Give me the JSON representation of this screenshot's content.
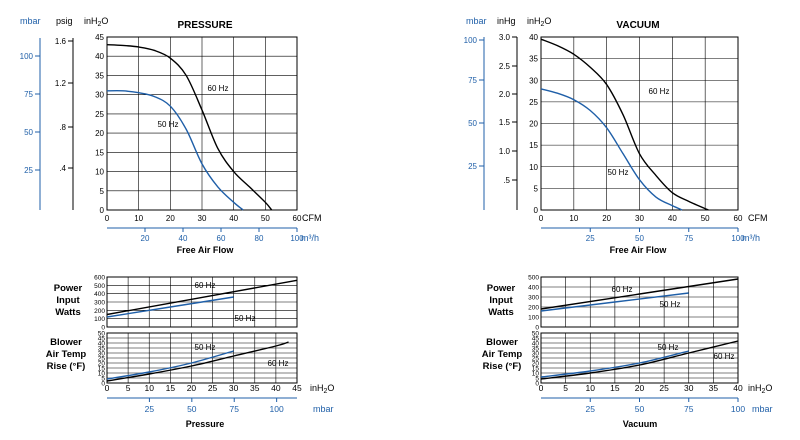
{
  "chart_data": [
    {
      "type": "line",
      "title": "PRESSURE",
      "xlabel": "Free Air Flow",
      "x_units": [
        "CFM",
        "m³/h"
      ],
      "x_ticks_cfm": [
        "0",
        "10",
        "20",
        "30",
        "40",
        "50",
        "60"
      ],
      "x_ticks_m3h": [
        "20",
        "40",
        "60",
        "80",
        "100"
      ],
      "y_units": [
        "mbar",
        "psig",
        "inH₂O"
      ],
      "y_ticks_inh2o": [
        "0",
        "5",
        "10",
        "15",
        "20",
        "25",
        "30",
        "35",
        "40",
        "45"
      ],
      "y_ticks_psig": [
        "1.6",
        "1.2",
        ".8",
        ".4"
      ],
      "y_ticks_mbar": [
        "100",
        "75",
        "50",
        "25"
      ],
      "xlim": [
        0,
        60
      ],
      "ylim": [
        0,
        45
      ],
      "grid": true,
      "series": [
        {
          "name": "60 Hz",
          "color": "#000000",
          "x": [
            0,
            5,
            10,
            15,
            20,
            25,
            30,
            35,
            40,
            45,
            50,
            52
          ],
          "y": [
            43,
            42.8,
            42.4,
            41.5,
            39.5,
            35,
            26,
            16,
            10,
            6,
            2,
            0
          ]
        },
        {
          "name": "50 Hz",
          "color": "#1f5fa8",
          "x": [
            0,
            5,
            10,
            15,
            20,
            25,
            30,
            35,
            40,
            43
          ],
          "y": [
            31,
            31,
            30.5,
            29.5,
            27,
            21,
            12,
            6,
            2,
            0
          ]
        }
      ]
    },
    {
      "type": "line",
      "title": "VACUUM",
      "xlabel": "Free Air Flow",
      "x_units": [
        "CFM",
        "m³/h"
      ],
      "x_ticks_cfm": [
        "0",
        "10",
        "20",
        "30",
        "40",
        "50",
        "60"
      ],
      "x_ticks_m3h": [
        "25",
        "50",
        "75",
        "100"
      ],
      "y_units": [
        "mbar",
        "inHg",
        "inH₂O"
      ],
      "y_ticks_inh2o": [
        "0",
        "5",
        "10",
        "15",
        "20",
        "25",
        "30",
        "35",
        "40"
      ],
      "y_ticks_inhg": [
        "3.0",
        "2.5",
        "2.0",
        "1.5",
        "1.0",
        ".5"
      ],
      "y_ticks_mbar": [
        "100",
        "75",
        "50",
        "25"
      ],
      "xlim": [
        0,
        60
      ],
      "ylim": [
        0,
        40
      ],
      "grid": true,
      "series": [
        {
          "name": "60 Hz",
          "color": "#000000",
          "x": [
            0,
            5,
            10,
            15,
            20,
            25,
            30,
            35,
            40,
            45,
            51
          ],
          "y": [
            39.5,
            38,
            36,
            33,
            29,
            22,
            13,
            8,
            4,
            2,
            0
          ]
        },
        {
          "name": "50 Hz",
          "color": "#1f5fa8",
          "x": [
            0,
            5,
            10,
            15,
            20,
            25,
            30,
            35,
            40,
            43
          ],
          "y": [
            28,
            27,
            25.5,
            23,
            19,
            13,
            7,
            3,
            1,
            0
          ]
        }
      ]
    },
    {
      "type": "line",
      "title": "",
      "ylabel": [
        "Power",
        "Input",
        "Watts"
      ],
      "y_ticks": [
        "0",
        "100",
        "200",
        "300",
        "400",
        "500",
        "600"
      ],
      "xlim": [
        0,
        45
      ],
      "ylim": [
        0,
        600
      ],
      "grid": true,
      "series": [
        {
          "name": "60 Hz",
          "color": "#000000",
          "x": [
            0,
            45
          ],
          "y": [
            150,
            560
          ]
        },
        {
          "name": "50 Hz",
          "color": "#1f5fa8",
          "x": [
            0,
            30
          ],
          "y": [
            120,
            360
          ]
        }
      ]
    },
    {
      "type": "line",
      "title": "",
      "ylabel": [
        "Blower",
        "Air Temp",
        "Rise (°F)"
      ],
      "xlabel": "Pressure",
      "x_units": [
        "inH₂O",
        "mbar"
      ],
      "x_ticks_inh2o": [
        "0",
        "5",
        "10",
        "15",
        "20",
        "25",
        "30",
        "35",
        "40",
        "45"
      ],
      "x_ticks_mbar": [
        "25",
        "50",
        "75",
        "100"
      ],
      "y_ticks": [
        "0",
        "5",
        "10",
        "15",
        "20",
        "25",
        "30",
        "35",
        "40",
        "45",
        "50"
      ],
      "xlim": [
        0,
        45
      ],
      "ylim": [
        0,
        50
      ],
      "grid": true,
      "series": [
        {
          "name": "50 Hz",
          "color": "#1f5fa8",
          "x": [
            0,
            10,
            20,
            30
          ],
          "y": [
            4,
            11,
            20,
            32
          ]
        },
        {
          "name": "60 Hz",
          "color": "#000000",
          "x": [
            0,
            10,
            20,
            30,
            40,
            43
          ],
          "y": [
            2,
            9,
            17,
            27,
            37,
            41
          ]
        }
      ]
    },
    {
      "type": "line",
      "title": "",
      "ylabel": [
        "Power",
        "Input",
        "Watts"
      ],
      "y_ticks": [
        "0",
        "100",
        "200",
        "300",
        "400",
        "500"
      ],
      "xlim": [
        0,
        40
      ],
      "ylim": [
        0,
        500
      ],
      "grid": true,
      "series": [
        {
          "name": "60 Hz",
          "color": "#000000",
          "x": [
            0,
            40
          ],
          "y": [
            180,
            480
          ]
        },
        {
          "name": "50 Hz",
          "color": "#1f5fa8",
          "x": [
            0,
            30
          ],
          "y": [
            160,
            340
          ]
        }
      ]
    },
    {
      "type": "line",
      "title": "",
      "ylabel": [
        "Blower",
        "Air Temp",
        "Rise (°F)"
      ],
      "xlabel": "Vacuum",
      "x_units": [
        "inH₂O",
        "mbar"
      ],
      "x_ticks_inh2o": [
        "0",
        "5",
        "10",
        "15",
        "20",
        "25",
        "30",
        "35",
        "40"
      ],
      "x_ticks_mbar": [
        "25",
        "50",
        "75",
        "100"
      ],
      "y_ticks": [
        "0",
        "5",
        "10",
        "15",
        "20",
        "25",
        "30",
        "35",
        "40",
        "45",
        "50"
      ],
      "xlim": [
        0,
        40
      ],
      "ylim": [
        0,
        50
      ],
      "grid": true,
      "series": [
        {
          "name": "50 Hz",
          "color": "#1f5fa8",
          "x": [
            0,
            10,
            20,
            30
          ],
          "y": [
            6,
            12,
            20,
            32
          ]
        },
        {
          "name": "60 Hz",
          "color": "#000000",
          "x": [
            0,
            10,
            20,
            30,
            40
          ],
          "y": [
            4,
            10,
            18,
            30,
            42
          ]
        }
      ]
    }
  ]
}
